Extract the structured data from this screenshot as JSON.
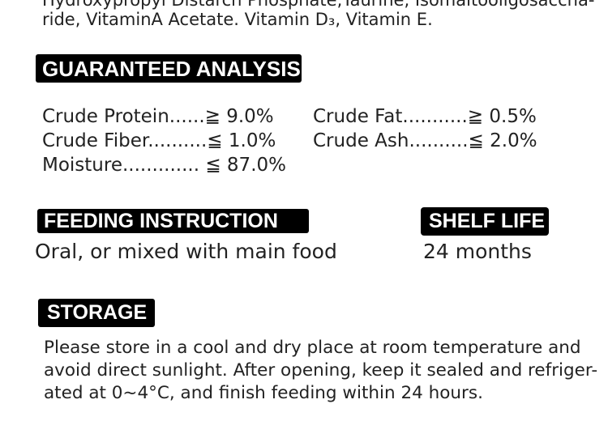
{
  "ingredients": {
    "line_cut": "Hydroxypropyl Distarch Phosphate,Taurine, Isomaltooligosaccha-",
    "line_2": "ride, VitaminA Acetate. Vitamin D₃, Vitamin E."
  },
  "guaranteed_analysis": {
    "heading": "GUARANTEED ANALYSIS",
    "items": [
      {
        "text": "Crude Protein......≧ 9.0%"
      },
      {
        "text": "Crude Fat...........≧ 0.5%"
      },
      {
        "text": "Crude Fiber..........≦ 1.0%"
      },
      {
        "text": "Crude Ash..........≦ 2.0%"
      },
      {
        "text": "Moisture............. ≦ 87.0%"
      }
    ]
  },
  "feeding_instruction": {
    "heading": "FEEDING INSTRUCTION",
    "text": "Oral, or mixed with main food"
  },
  "shelf_life": {
    "heading": "SHELF LIFE",
    "text": "24 months"
  },
  "storage": {
    "heading": "STORAGE",
    "lines": [
      "Please store in a cool and dry place at room temperature and",
      "avoid direct sunlight. After opening, keep it sealed and refriger-",
      "ated at 0~4°C, and finish feeding within 24 hours."
    ]
  }
}
